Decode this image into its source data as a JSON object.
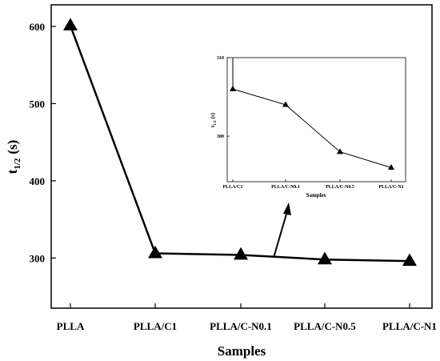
{
  "chart_data": [
    {
      "type": "line",
      "title": "",
      "xlabel": "Samples",
      "ylabel_main": "t",
      "ylabel_sub": "1/2",
      "ylabel_unit": "(s)",
      "categories": [
        "PLLA",
        "PLLA/C1",
        "PLLA/C-N0.1",
        "PLLA/C-N0.5",
        "PLLA/C-N1"
      ],
      "series": [
        {
          "values": [
            601,
            306,
            304,
            298,
            296
          ]
        }
      ],
      "ylim": [
        235,
        628
      ],
      "yticks": [
        300,
        400,
        500,
        600
      ],
      "ytick_labels": [
        "300",
        "400",
        "500",
        "600"
      ],
      "marker": "triangle",
      "grid": false,
      "legend": "none"
    },
    {
      "type": "line",
      "title": "",
      "xlabel": "Samples",
      "ylabel_main": "t",
      "ylabel_sub": "1/2",
      "ylabel_unit": "(s)",
      "categories": [
        "PLLA/C1",
        "PLLA/C-N0.1",
        "PLLA/C-N0.5",
        "PLLA/C-N1"
      ],
      "series": [
        {
          "values": [
            306,
            304,
            298,
            296
          ]
        }
      ],
      "ylim": [
        294.2,
        310
      ],
      "yticks": [
        300,
        310
      ],
      "ytick_labels": [
        "300",
        "310"
      ],
      "marker": "triangle",
      "grid": false,
      "legend": "none"
    }
  ]
}
